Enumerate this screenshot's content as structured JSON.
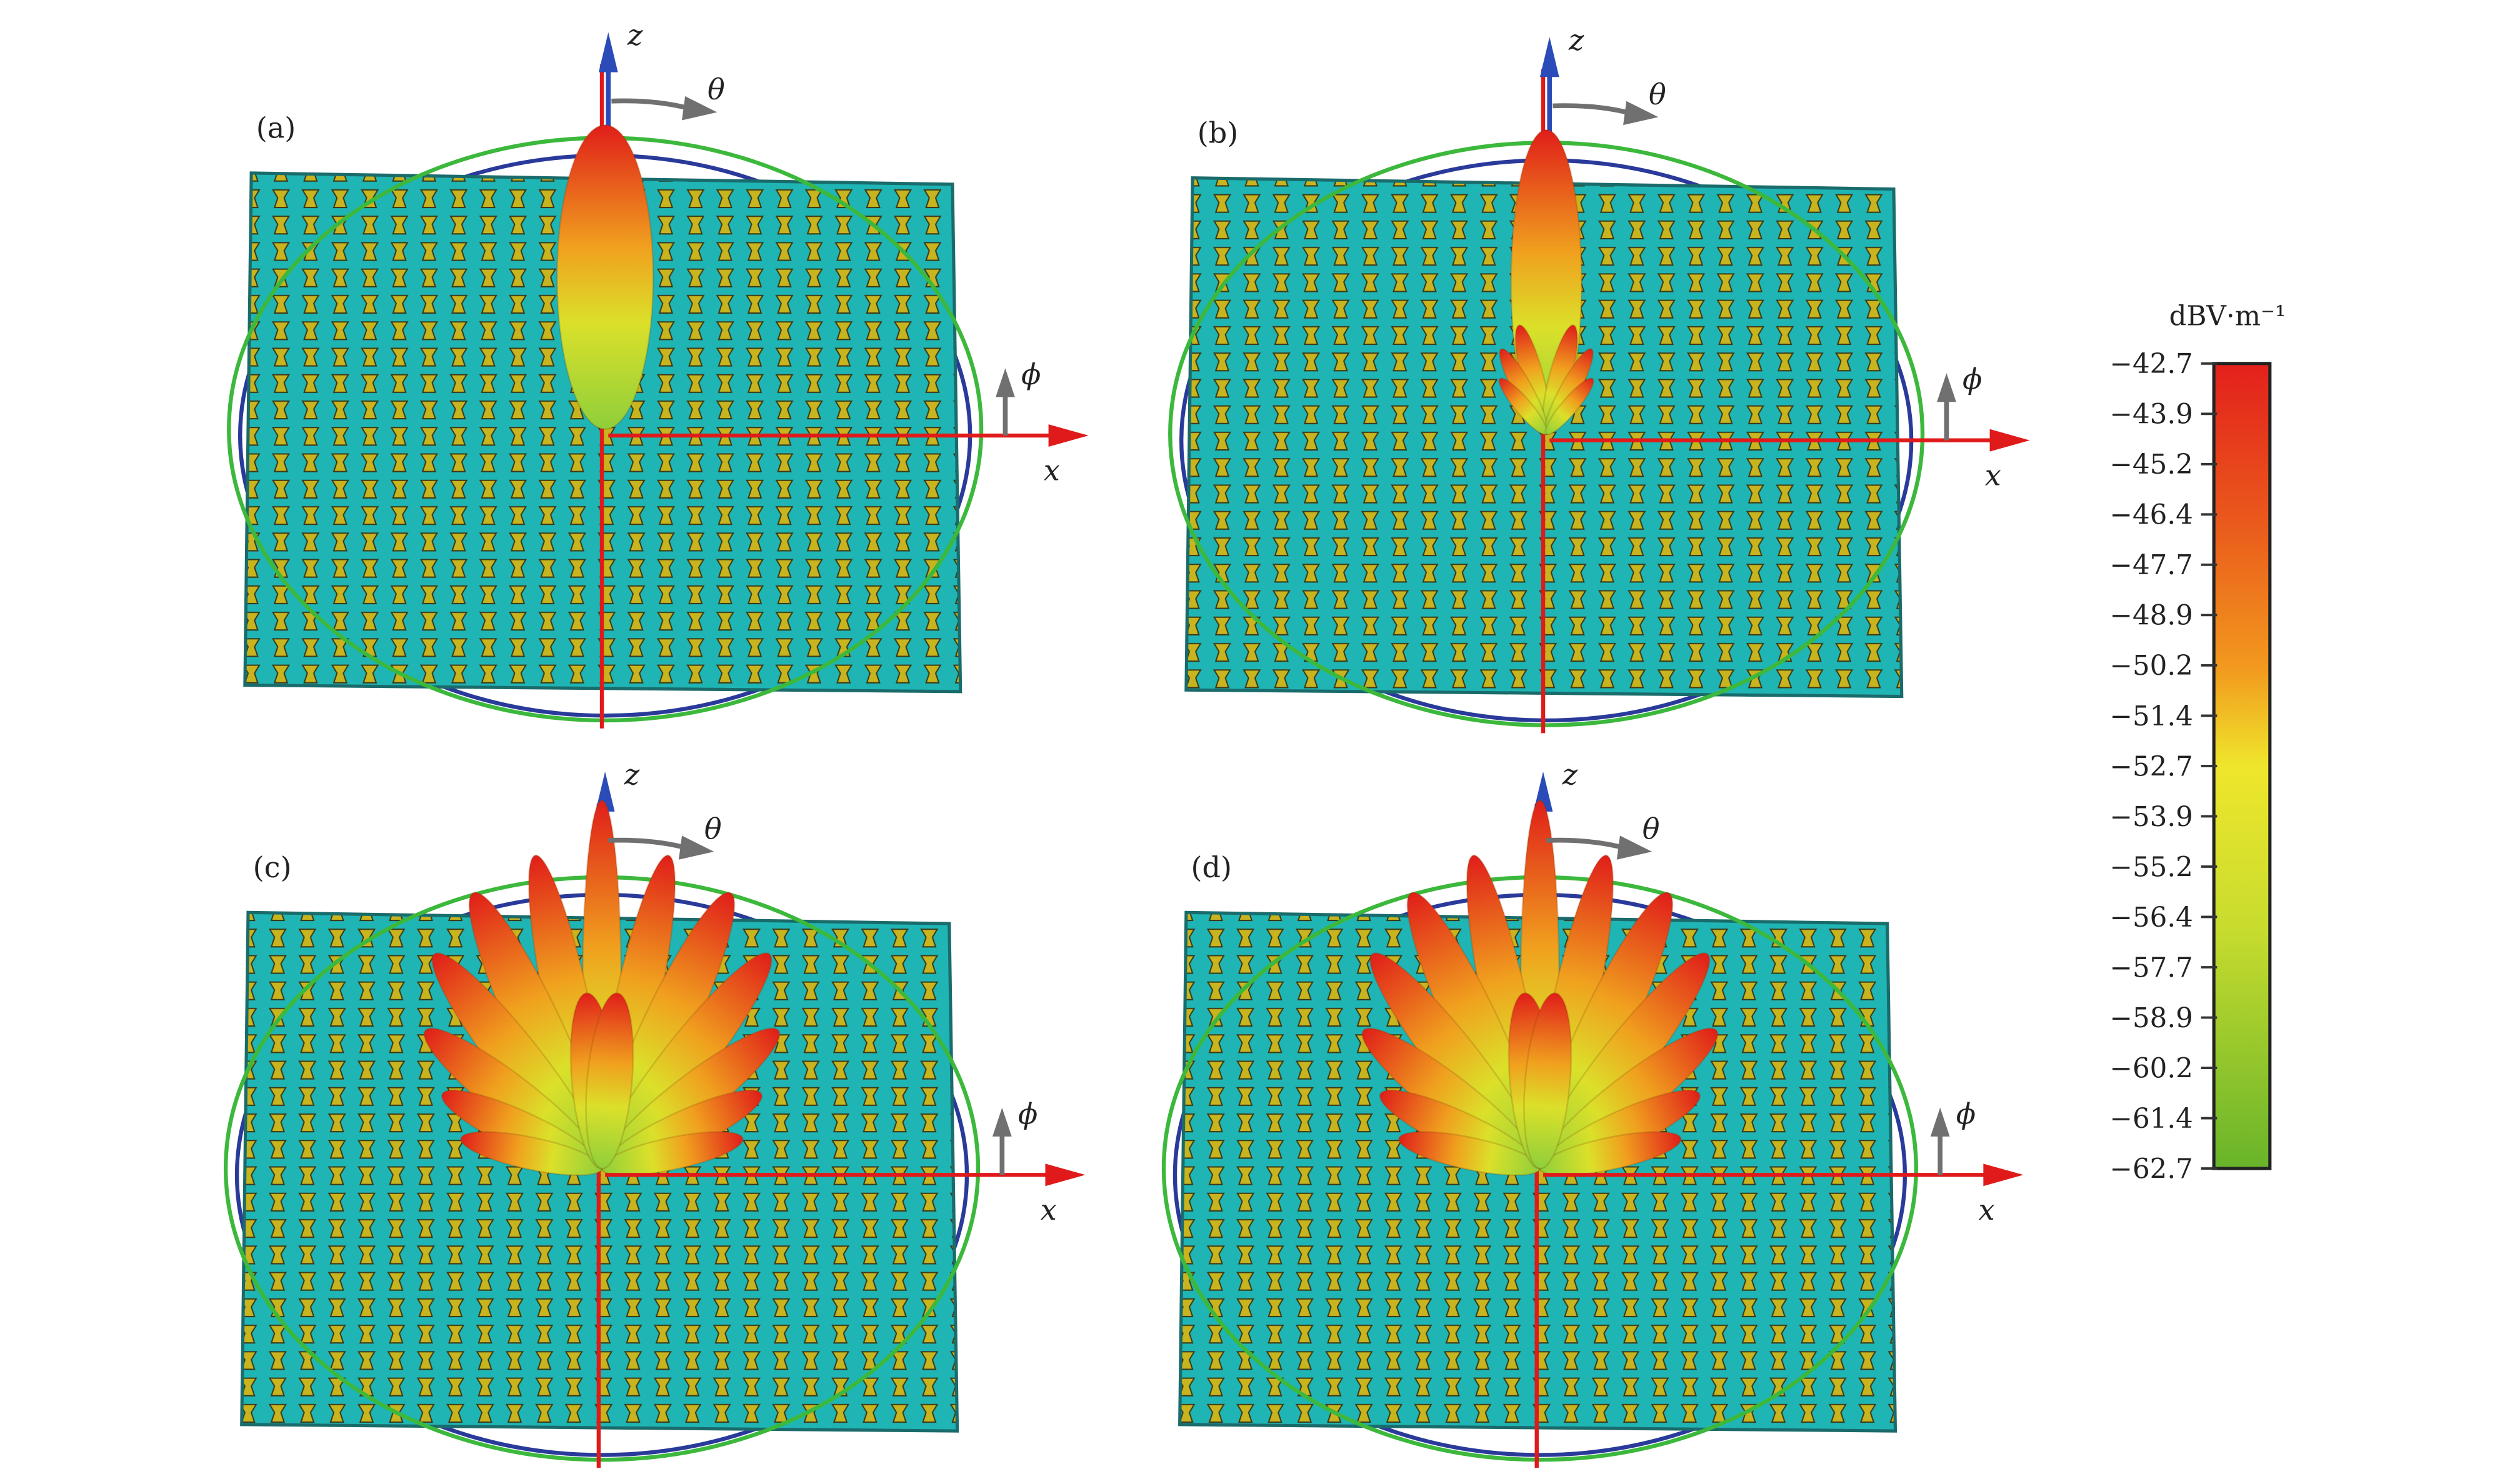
{
  "panels": [
    {
      "label": "(a)",
      "beam": "single"
    },
    {
      "label": "(b)",
      "beam": "single-with-sidelobes"
    },
    {
      "label": "(c)",
      "beam": "multi"
    },
    {
      "label": "(d)",
      "beam": "multi"
    }
  ],
  "axes": {
    "z": "z",
    "x": "x",
    "theta": "θ",
    "phi": "ϕ"
  },
  "colorbar": {
    "unit": "dBV·m⁻¹",
    "ticks": [
      "−42.7",
      "−43.9",
      "−45.2",
      "−46.4",
      "−47.7",
      "−48.9",
      "−50.2",
      "−51.4",
      "−52.7",
      "−53.9",
      "−55.2",
      "−56.4",
      "−57.7",
      "−58.9",
      "−60.2",
      "−61.4",
      "−62.7"
    ],
    "range": [
      -62.7,
      -42.7
    ],
    "colors": [
      "#e3201c",
      "#e8501c",
      "#ee8a1e",
      "#f2b81e",
      "#efe62c",
      "#cde02e",
      "#a8d02a",
      "#6fb52a"
    ]
  },
  "colors": {
    "substrate": "#1fb5b5",
    "unit_cell": "#c8b41e",
    "z_axis": "#2a4bb8",
    "x_axis": "#e01a1a",
    "theta_circle": "#3cb83c",
    "phi_circle": "#2a3a9a",
    "rotation_arrow": "#707070"
  }
}
